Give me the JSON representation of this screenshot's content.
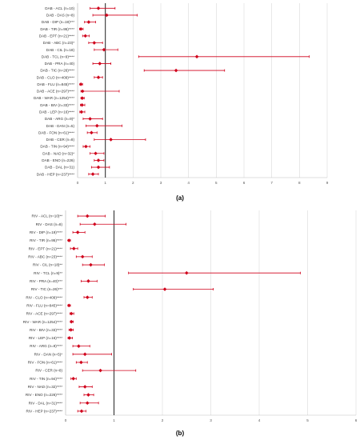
{
  "chart_data": [
    {
      "type": "scatter",
      "panel_label": "(a)",
      "ref_line_x": 1,
      "xlim": [
        0,
        9
      ],
      "xticks": [
        "0",
        "1",
        "2",
        "3",
        "4",
        "5",
        "6",
        "7",
        "8",
        "9"
      ],
      "grid": "vertical",
      "point_color": "#d0021b",
      "ref_color": "#333333",
      "categories": [
        "DAB - ACL (n=10)",
        "DAB - DAS (n=8)",
        "DAB - DIP (n=19)***",
        "DAB - TIR (n=95)****",
        "DAB - EPT (n=21)****",
        "DAB - ABC (n=23)*",
        "DAB - CIL (n=18)",
        "DAB - TCL (n=9)****",
        "DAB - PRA (n=40)",
        "DAB - TIC (n=26)****",
        "DAB - CLO (n=409)****",
        "DAB - FLU (n=845)****",
        "DAB - ACE (n=297)****",
        "DAB - WAR (n=1254)****",
        "DAB - BIV (n=33)****",
        "DAB - LEP (n=16)****",
        "DAB - ARG (n=9)*",
        "DAB - DAN (n=5)",
        "DAB - FON (n=61)****",
        "DAB - CER (n=8)",
        "DAB - TIN (n=94)****",
        "DAB - NAD (n=32)*",
        "DAB - ENO (n=226)",
        "DAB - DAL (n=31)",
        "DAB - HEP (n=237)****"
      ],
      "estimates": [
        0.75,
        1.05,
        0.4,
        0.12,
        0.28,
        0.6,
        0.95,
        4.3,
        0.8,
        3.55,
        0.75,
        0.12,
        0.18,
        0.17,
        0.16,
        0.14,
        0.45,
        0.7,
        0.5,
        1.2,
        0.3,
        0.65,
        0.75,
        0.75,
        0.55
      ],
      "ci_low": [
        0.45,
        0.55,
        0.25,
        0.07,
        0.18,
        0.4,
        0.6,
        2.2,
        0.55,
        2.4,
        0.6,
        0.08,
        0.12,
        0.12,
        0.1,
        0.08,
        0.2,
        0.3,
        0.35,
        0.6,
        0.2,
        0.45,
        0.6,
        0.5,
        0.4
      ],
      "ci_high": [
        1.35,
        2.15,
        0.65,
        0.2,
        0.42,
        0.9,
        1.45,
        8.35,
        1.2,
        5.3,
        0.9,
        0.18,
        1.5,
        0.24,
        0.26,
        0.26,
        0.9,
        1.6,
        0.7,
        2.45,
        0.45,
        0.95,
        0.95,
        1.15,
        0.75
      ]
    },
    {
      "type": "scatter",
      "panel_label": "(b)",
      "ref_line_x": 1,
      "xlim": [
        0,
        6
      ],
      "xticks": [
        "0",
        "1",
        "2",
        "3",
        "4",
        "5",
        "6"
      ],
      "grid": "vertical",
      "point_color": "#d0021b",
      "ref_color": "#333333",
      "categories": [
        "RIV - ACL (n=10)**",
        "RIV - DAS (n=8)",
        "RIV - DIP (n=19)****",
        "RIV - TIR (n=95)****",
        "RIV - EPT (n=21)****",
        "RIV - ABC (n=23)****",
        "RIV - CIL (n=18)**",
        "RIV - TCL (n=9)**",
        "RIV - PRA (n=40)***",
        "RIV - TIC (n=26)***",
        "RIV - CLO (n=409)****",
        "RIV - FLU (n=845)****",
        "RIV - ACE (n=297)****",
        "RIV - WAR (n=1254)****",
        "RIV - BIV (n=33)****",
        "RIV - LEP (n=16)****",
        "RIV - ARG (n=9)****",
        "RIV - DAN (n=5)*",
        "RIV - FON (n=61)****",
        "RIV - CER (n=8)",
        "RIV - TIN (n=94)****",
        "RIV - NAD (n=32)****",
        "RIV - ENO (n=226)****",
        "RIV - DAL (n=31)****",
        "RIV - HEP (n=237)****"
      ],
      "estimates": [
        0.45,
        0.6,
        0.25,
        0.07,
        0.17,
        0.35,
        0.52,
        2.5,
        0.47,
        2.05,
        0.45,
        0.07,
        0.12,
        0.12,
        0.11,
        0.08,
        0.27,
        0.4,
        0.32,
        0.72,
        0.16,
        0.4,
        0.47,
        0.45,
        0.33
      ],
      "ci_low": [
        0.25,
        0.3,
        0.15,
        0.05,
        0.1,
        0.22,
        0.35,
        1.3,
        0.32,
        1.4,
        0.38,
        0.05,
        0.09,
        0.1,
        0.07,
        0.05,
        0.15,
        0.15,
        0.22,
        0.35,
        0.11,
        0.28,
        0.38,
        0.3,
        0.25
      ],
      "ci_high": [
        0.82,
        1.25,
        0.4,
        0.1,
        0.25,
        0.55,
        0.8,
        4.85,
        0.65,
        3.05,
        0.55,
        0.1,
        0.17,
        0.16,
        0.16,
        0.14,
        0.5,
        0.95,
        0.45,
        1.45,
        0.22,
        0.55,
        0.58,
        0.68,
        0.42
      ]
    }
  ]
}
